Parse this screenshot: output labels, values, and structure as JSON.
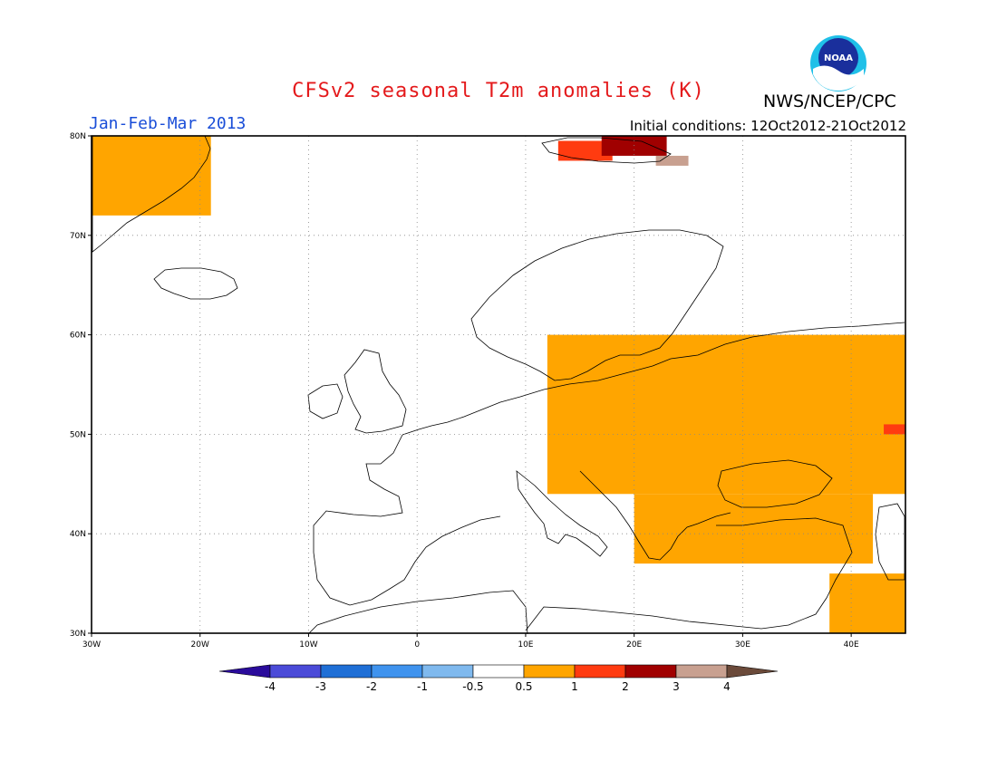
{
  "header": {
    "title": "CFSv2 seasonal T2m anomalies (K)",
    "agency": "NWS/NCEP/CPC",
    "logo_text": "NOAA",
    "period": "Jan-Feb-Mar 2013",
    "initial_conditions": "Initial conditions: 12Oct2012-21Oct2012"
  },
  "map": {
    "lon_range": [
      -30,
      45
    ],
    "lat_range": [
      30,
      80
    ],
    "lon_ticks": [
      "30W",
      "20W",
      "10W",
      "0",
      "10E",
      "20E",
      "30E",
      "40E"
    ],
    "lat_ticks": [
      "30N",
      "40N",
      "50N",
      "60N",
      "70N",
      "80N"
    ],
    "grid": true
  },
  "colorbar": {
    "labels": [
      "-4",
      "-3",
      "-2",
      "-1",
      "-0.5",
      "0.5",
      "1",
      "2",
      "3",
      "4"
    ],
    "colors": [
      "#2a0b9b",
      "#4b4bd8",
      "#1f6fd6",
      "#3f93ee",
      "#7fb9ee",
      "#ffffff",
      "#ffa500",
      "#ff3b10",
      "#a00000",
      "#c8a090",
      "#6b4a3a"
    ]
  },
  "chart_data": {
    "type": "heatmap",
    "title": "CFSv2 seasonal T2m anomalies (K)",
    "units": "K",
    "bins": [
      {
        "range": "< -4",
        "color": "#2a0b9b"
      },
      {
        "range": "-4 to -3",
        "color": "#4b4bd8"
      },
      {
        "range": "-3 to -2",
        "color": "#1f6fd6"
      },
      {
        "range": "-2 to -1",
        "color": "#3f93ee"
      },
      {
        "range": "-1 to -0.5",
        "color": "#7fb9ee"
      },
      {
        "range": "-0.5 to 0.5",
        "color": "#ffffff"
      },
      {
        "range": "0.5 to 1",
        "color": "#ffa500"
      },
      {
        "range": "1 to 2",
        "color": "#ff3b10"
      },
      {
        "range": "2 to 3",
        "color": "#a00000"
      },
      {
        "range": "3 to 4",
        "color": "#c8a090"
      },
      {
        "range": "> 4",
        "color": "#6b4a3a"
      }
    ],
    "regions": [
      {
        "name": "E Greenland",
        "value_bin": "0.5 to 1",
        "lon": [
          -30,
          -19
        ],
        "lat": [
          72,
          80
        ]
      },
      {
        "name": "Svalbard west",
        "value_bin": "1 to 2",
        "lon": [
          13,
          18
        ],
        "lat": [
          77.5,
          79.5
        ]
      },
      {
        "name": "Svalbard north",
        "value_bin": "2 to 3",
        "lon": [
          17,
          23
        ],
        "lat": [
          78,
          80
        ]
      },
      {
        "name": "Svalbard east",
        "value_bin": "3 to 4",
        "lon": [
          22,
          25
        ],
        "lat": [
          77,
          78
        ]
      },
      {
        "name": "Central/E Europe & W Russia",
        "value_bin": "0.5 to 1",
        "lon": [
          12,
          45
        ],
        "lat": [
          44,
          60
        ]
      },
      {
        "name": "Balkans & Turkey",
        "value_bin": "0.5 to 1",
        "lon": [
          20,
          42
        ],
        "lat": [
          37,
          44
        ]
      },
      {
        "name": "Middle East",
        "value_bin": "0.5 to 1",
        "lon": [
          38,
          45
        ],
        "lat": [
          30,
          36
        ]
      },
      {
        "name": "W Russia spot",
        "value_bin": "1 to 2",
        "lon": [
          43,
          45
        ],
        "lat": [
          50,
          51
        ]
      }
    ]
  }
}
